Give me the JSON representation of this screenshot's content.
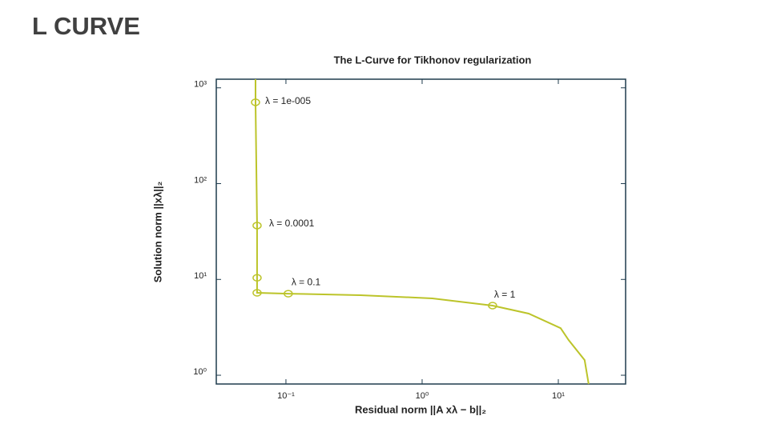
{
  "page_title": "L CURVE",
  "chart_data": {
    "type": "line",
    "title": "The L-Curve for Tikhonov regularization",
    "xlabel": "Residual norm ||A xλ − b||₂",
    "ylabel": "Solution norm ||xλ||₂",
    "xscale": "log",
    "yscale": "log",
    "xlim": [
      0.0308,
      31.2
    ],
    "ylim": [
      0.81,
      1230
    ],
    "xticks": [
      {
        "value": 0.1,
        "label": "10⁻¹"
      },
      {
        "value": 1,
        "label": "10⁰"
      },
      {
        "value": 10,
        "label": "10¹"
      }
    ],
    "yticks": [
      {
        "value": 1,
        "label": "10⁰"
      },
      {
        "value": 10,
        "label": "10¹"
      },
      {
        "value": 100,
        "label": "10²"
      },
      {
        "value": 1000,
        "label": "10³"
      }
    ],
    "series": [
      {
        "color": "#bcc42a",
        "x": [
          0.0598,
          0.0598,
          0.0614,
          0.0614,
          0.0614,
          0.104,
          0.352,
          1.19,
          3.29,
          6.06,
          10.4,
          11.9,
          15.6,
          16.7
        ],
        "values": [
          1230,
          706,
          36.5,
          10.4,
          7.25,
          7.1,
          6.85,
          6.34,
          5.33,
          4.4,
          3.1,
          2.33,
          1.44,
          0.81
        ]
      }
    ],
    "markers": {
      "color": "#bcc42a",
      "x": [
        0.0598,
        0.0614,
        0.0614,
        0.0614,
        0.104,
        3.29
      ],
      "values": [
        706,
        36.5,
        10.4,
        7.25,
        7.1,
        5.33
      ],
      "labels": [
        "λ  = 1e-005",
        "λ  = 0.0001",
        null,
        null,
        "λ  = 0.1",
        "λ  = 1"
      ]
    }
  }
}
